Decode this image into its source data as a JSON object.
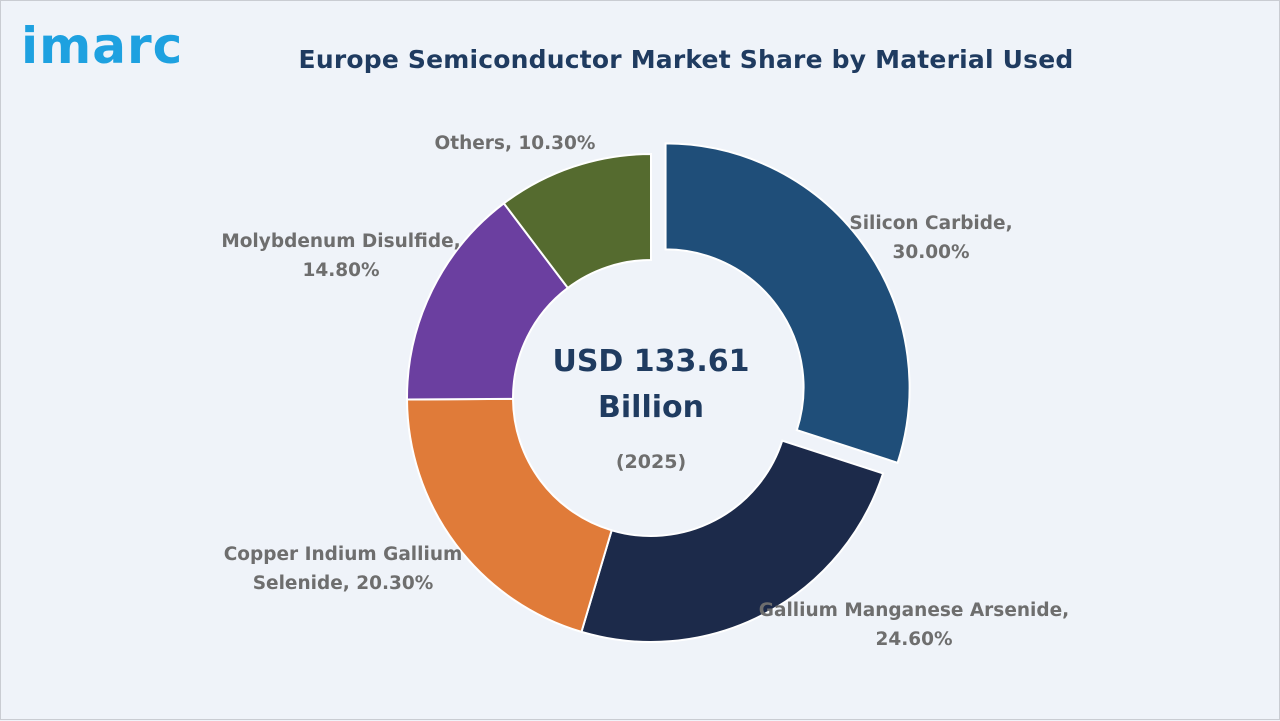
{
  "brand": {
    "logo_text": "imarc",
    "logo_color": "#1ea1e0"
  },
  "header": {
    "title": "Europe Semiconductor Market Share by Material Used"
  },
  "center": {
    "value": "USD 133.61 Billion",
    "year": "(2025)"
  },
  "chart_data": {
    "type": "pie",
    "subtype": "donut",
    "title": "Europe Semiconductor Market Share by Material Used",
    "unit": "%",
    "slices": [
      {
        "name": "Silicon Carbide",
        "value": 30.0,
        "label": "Silicon Carbide,\n30.00%",
        "color": "#1f4e79",
        "exploded": true
      },
      {
        "name": "Gallium Manganese Arsenide",
        "value": 24.6,
        "label": "Gallium Manganese Arsenide,\n24.60%",
        "color": "#1c2a4a",
        "exploded": false
      },
      {
        "name": "Copper Indium Gallium Selenide",
        "value": 20.3,
        "label": "Copper Indium Gallium\nSelenide, 20.30%",
        "color": "#e07b39",
        "exploded": false
      },
      {
        "name": "Molybdenum Disulfide",
        "value": 14.8,
        "label": "Molybdenum Disulfide,\n14.80%",
        "color": "#6b3fa0",
        "exploded": false
      },
      {
        "name": "Others",
        "value": 10.3,
        "label": "Others, 10.30%",
        "color": "#556b2f",
        "exploded": false
      }
    ]
  }
}
